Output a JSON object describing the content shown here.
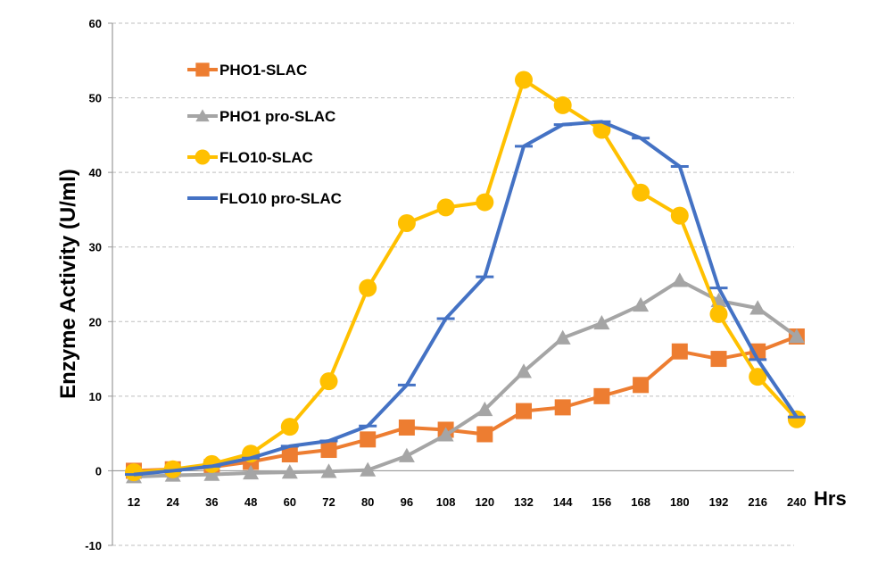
{
  "chart_data": {
    "type": "line",
    "title": "",
    "ylabel": "Enzyme Activity (U/ml)",
    "xlabel": "Hrs",
    "categories": [
      "12",
      "24",
      "36",
      "48",
      "60",
      "72",
      "80",
      "96",
      "108",
      "120",
      "132",
      "144",
      "156",
      "168",
      "180",
      "192",
      "216",
      "240"
    ],
    "ylim": [
      -10,
      60
    ],
    "yticks": [
      -10,
      0,
      10,
      20,
      30,
      40,
      50,
      60
    ],
    "grid": "horizontal-dashed",
    "legend_position": "top-left",
    "series": [
      {
        "name": "PHO1-SLAC",
        "color": "#ED7D31",
        "marker": "square",
        "values": [
          0,
          0.2,
          0.5,
          1.2,
          2.2,
          2.8,
          4.2,
          5.8,
          5.5,
          4.9,
          8,
          8.5,
          10,
          11.5,
          16,
          15,
          16,
          18
        ]
      },
      {
        "name": "PHO1 pro-SLAC",
        "color": "#A5A5A5",
        "marker": "triangle",
        "values": [
          -0.8,
          -0.6,
          -0.5,
          -0.3,
          -0.2,
          -0.1,
          0.1,
          2,
          4.8,
          8.2,
          13.3,
          17.8,
          19.8,
          22.2,
          25.5,
          22.8,
          21.8,
          18
        ]
      },
      {
        "name": "FLO10-SLAC",
        "color": "#FFC000",
        "marker": "circle",
        "values": [
          -0.2,
          0.2,
          0.9,
          2.3,
          5.9,
          12,
          24.5,
          33.2,
          35.3,
          36,
          52.4,
          49,
          45.7,
          37.3,
          34.2,
          21,
          12.6,
          6.9
        ]
      },
      {
        "name": "FLO10 pro-SLAC",
        "color": "#4472C4",
        "marker": "dash",
        "values": [
          -0.5,
          0,
          0.6,
          1.7,
          3.3,
          4,
          6,
          11.5,
          20.4,
          26,
          43.5,
          46.4,
          46.8,
          44.6,
          40.8,
          24.5,
          14.9,
          7.2
        ]
      }
    ]
  }
}
